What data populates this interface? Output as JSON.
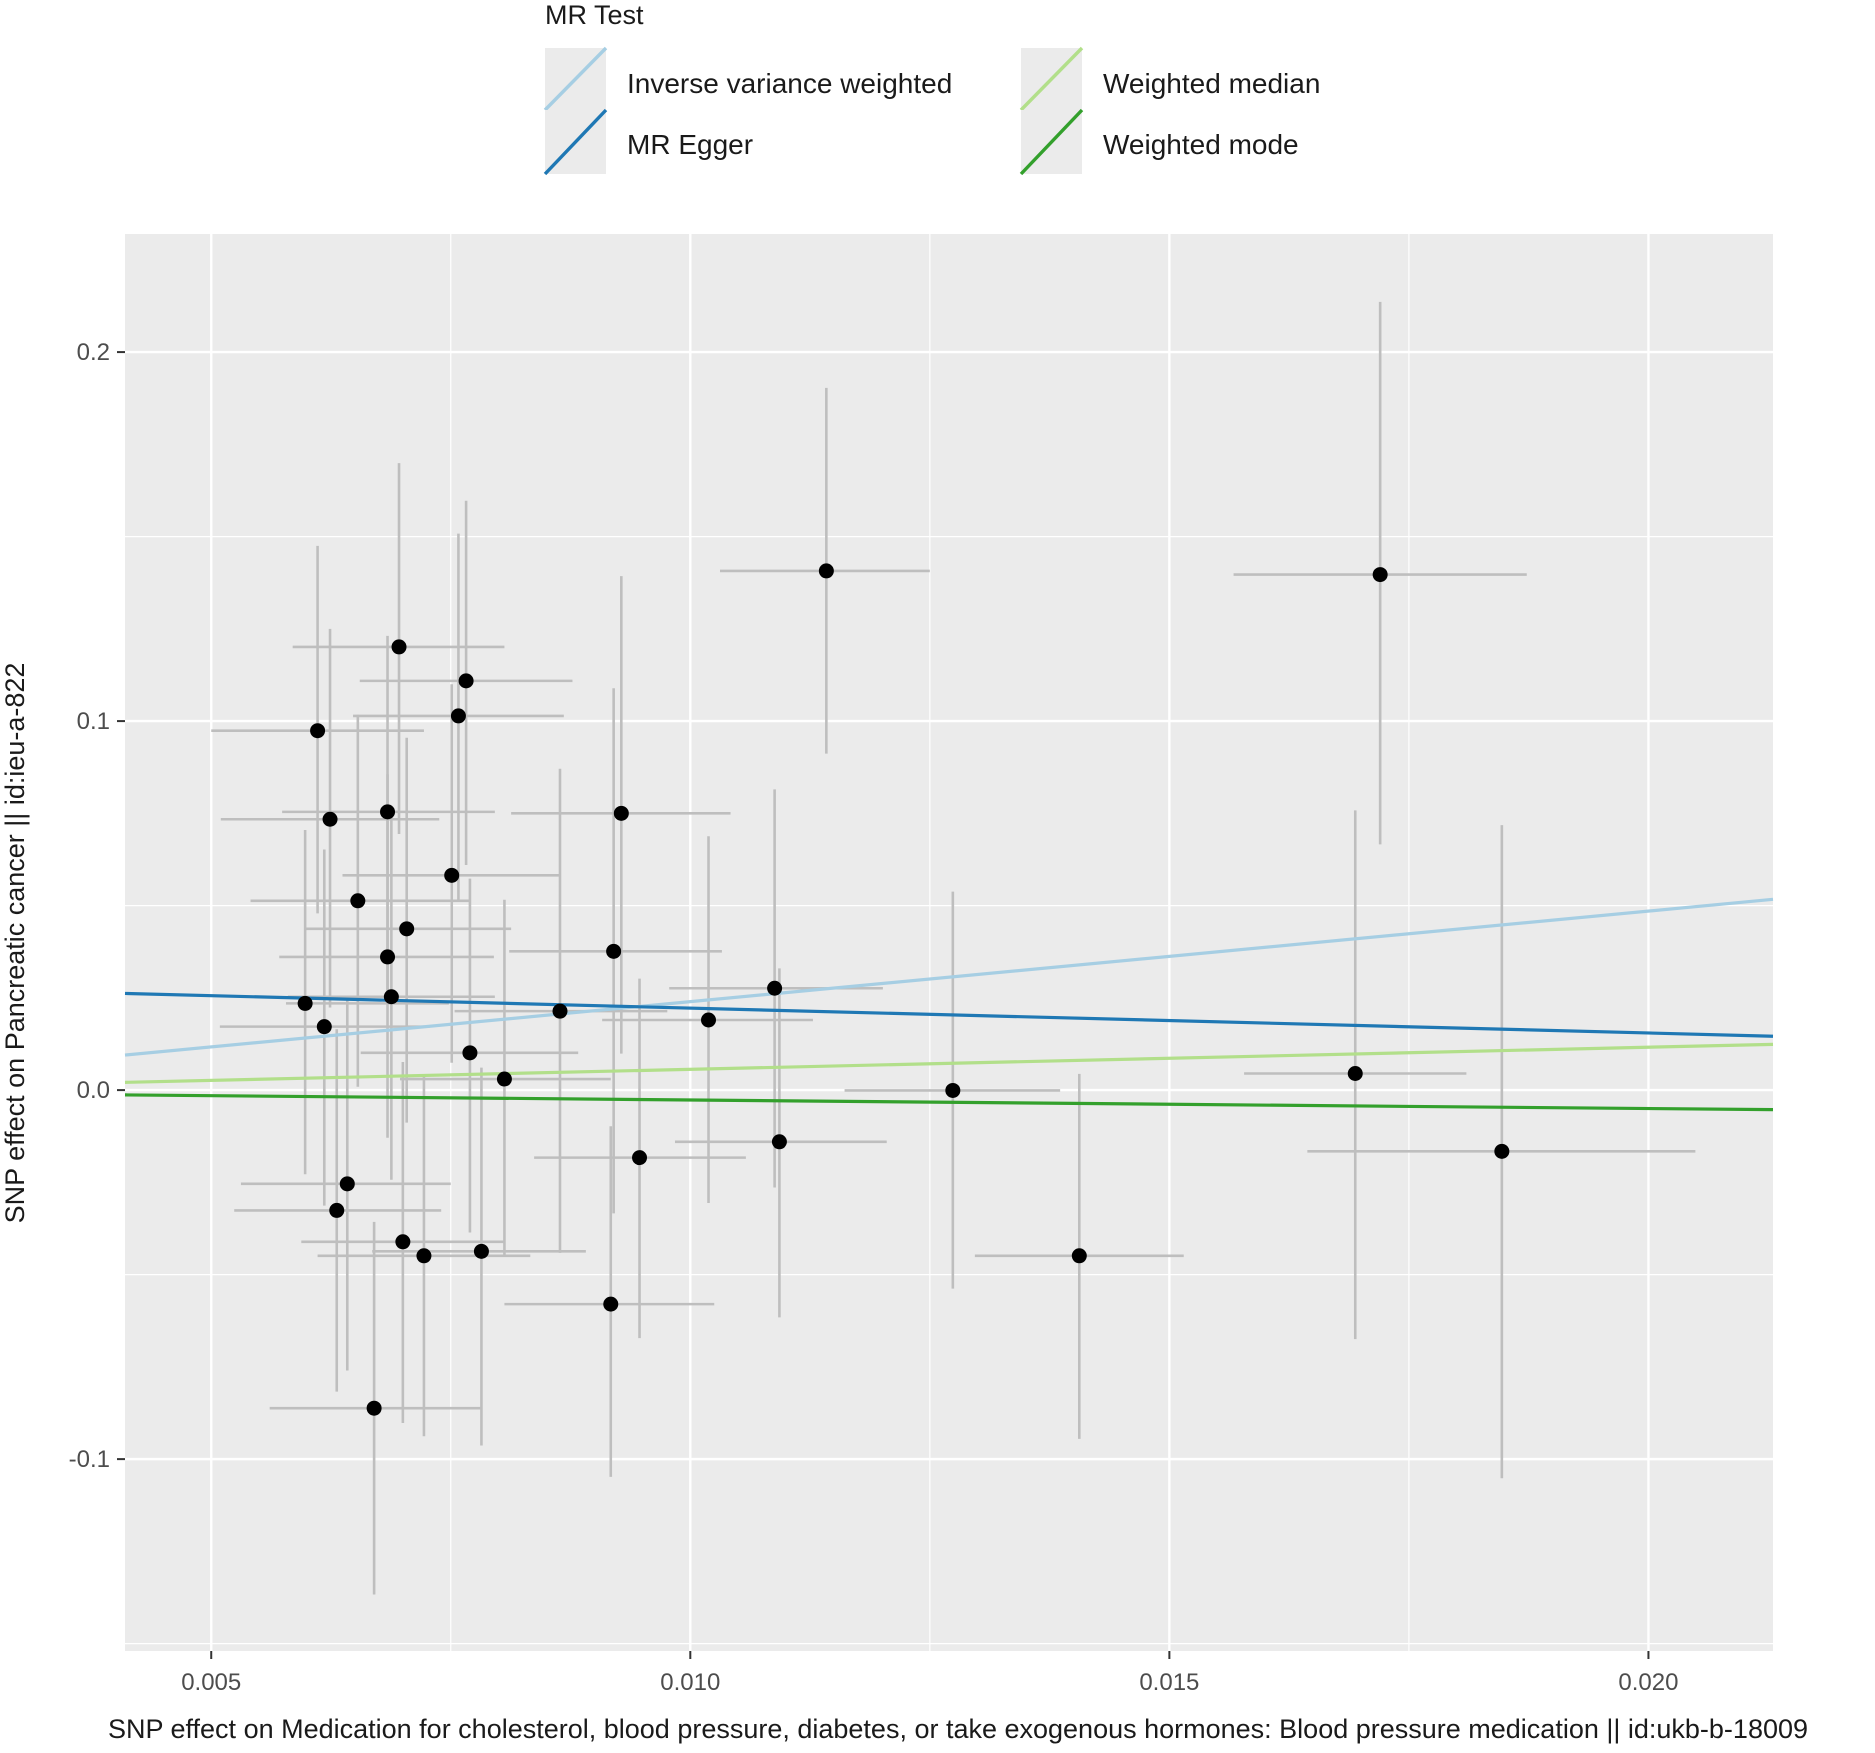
{
  "chart_data": {
    "type": "scatter",
    "xlabel": "SNP effect on Medication for cholesterol, blood pressure, diabetes, or take exogenous hormones: Blood pressure medication || id:ukb-b-18009",
    "ylabel": "SNP effect on Pancreatic cancer || id:ieu-a-822",
    "xlim": [
      0.0041,
      0.0213
    ],
    "ylim": [
      -0.152,
      0.232
    ],
    "x_ticks": [
      "0.005",
      "0.010",
      "0.015",
      "0.020"
    ],
    "x_tick_values": [
      0.005,
      0.01,
      0.015,
      0.02
    ],
    "y_ticks": [
      "0.2",
      "0.1",
      "0.0",
      "-0.1"
    ],
    "y_tick_values": [
      0.2,
      0.1,
      0.0,
      -0.1
    ],
    "grid": true,
    "background": "#ebebeb",
    "legend": {
      "title": "MR Test",
      "placement": "top",
      "entries": [
        {
          "label": "Inverse variance weighted",
          "color": "#a6cee3"
        },
        {
          "label": "MR Egger",
          "color": "#1f78b4"
        },
        {
          "label": "Weighted median",
          "color": "#b2df8a"
        },
        {
          "label": "Weighted mode",
          "color": "#33a02c"
        }
      ]
    },
    "lines": [
      {
        "name": "Inverse variance weighted",
        "color": "#a6cee3",
        "x": [
          0.0041,
          0.0213
        ],
        "y": [
          0.0095,
          0.0517
        ]
      },
      {
        "name": "MR Egger",
        "color": "#1f78b4",
        "x": [
          0.0041,
          0.0213
        ],
        "y": [
          0.0262,
          0.0146
        ]
      },
      {
        "name": "Weighted median",
        "color": "#b2df8a",
        "x": [
          0.0041,
          0.0213
        ],
        "y": [
          0.0021,
          0.0124
        ]
      },
      {
        "name": "Weighted mode",
        "color": "#33a02c",
        "x": [
          0.0041,
          0.0213
        ],
        "y": [
          -0.0013,
          -0.0053
        ]
      }
    ],
    "points": [
      {
        "x": 0.00598,
        "y": 0.0235,
        "xmin": 0.00578,
        "xmax": 0.00748,
        "ymin": -0.0228,
        "ymax": 0.0705
      },
      {
        "x": 0.00611,
        "y": 0.0974,
        "xmin": 0.005,
        "xmax": 0.00722,
        "ymin": 0.0479,
        "ymax": 0.1475
      },
      {
        "x": 0.00618,
        "y": 0.0172,
        "xmin": 0.00509,
        "xmax": 0.00728,
        "ymin": -0.0313,
        "ymax": 0.0652
      },
      {
        "x": 0.00624,
        "y": 0.0734,
        "xmin": 0.0051,
        "xmax": 0.00738,
        "ymin": 0.0224,
        "ymax": 0.125
      },
      {
        "x": 0.00631,
        "y": -0.0326,
        "xmin": 0.00524,
        "xmax": 0.0074,
        "ymin": -0.0817,
        "ymax": 0.0165
      },
      {
        "x": 0.00642,
        "y": -0.0254,
        "xmin": 0.00531,
        "xmax": 0.0075,
        "ymin": -0.076,
        "ymax": 0.0252
      },
      {
        "x": 0.00653,
        "y": 0.0513,
        "xmin": 0.00541,
        "xmax": 0.00769,
        "ymin": 0.0009,
        "ymax": 0.1017
      },
      {
        "x": 0.0067,
        "y": -0.0862,
        "xmin": 0.00561,
        "xmax": 0.00781,
        "ymin": -0.1367,
        "ymax": -0.0357
      },
      {
        "x": 0.00684,
        "y": 0.0754,
        "xmin": 0.00574,
        "xmax": 0.00796,
        "ymin": 0.0269,
        "ymax": 0.1231
      },
      {
        "x": 0.00684,
        "y": 0.0361,
        "xmin": 0.00571,
        "xmax": 0.00795,
        "ymin": -0.0129,
        "ymax": 0.0856
      },
      {
        "x": 0.00688,
        "y": 0.0253,
        "xmin": 0.0058,
        "xmax": 0.00796,
        "ymin": -0.0243,
        "ymax": 0.0763
      },
      {
        "x": 0.00696,
        "y": 0.1201,
        "xmin": 0.00585,
        "xmax": 0.00806,
        "ymin": 0.0694,
        "ymax": 0.1699
      },
      {
        "x": 0.007,
        "y": -0.0411,
        "xmin": 0.00594,
        "xmax": 0.00807,
        "ymin": -0.0902,
        "ymax": 0.0076
      },
      {
        "x": 0.00704,
        "y": 0.0437,
        "xmin": 0.00597,
        "xmax": 0.00813,
        "ymin": -0.0088,
        "ymax": 0.0955
      },
      {
        "x": 0.00722,
        "y": -0.0449,
        "xmin": 0.00611,
        "xmax": 0.00833,
        "ymin": -0.0938,
        "ymax": 0.0039
      },
      {
        "x": 0.00751,
        "y": 0.0582,
        "xmin": 0.00637,
        "xmax": 0.00863,
        "ymin": 0.0074,
        "ymax": 0.11
      },
      {
        "x": 0.00758,
        "y": 0.1014,
        "xmin": 0.00648,
        "xmax": 0.00868,
        "ymin": 0.0516,
        "ymax": 0.1508
      },
      {
        "x": 0.00766,
        "y": 0.1109,
        "xmin": 0.00655,
        "xmax": 0.00877,
        "ymin": 0.061,
        "ymax": 0.1597
      },
      {
        "x": 0.0077,
        "y": 0.0101,
        "xmin": 0.00656,
        "xmax": 0.00883,
        "ymin": -0.0386,
        "ymax": 0.0573
      },
      {
        "x": 0.00782,
        "y": -0.0437,
        "xmin": 0.00668,
        "xmax": 0.00891,
        "ymin": -0.0963,
        "ymax": 0.0061
      },
      {
        "x": 0.00806,
        "y": 0.003,
        "xmin": 0.00697,
        "xmax": 0.00917,
        "ymin": -0.0452,
        "ymax": 0.0516
      },
      {
        "x": 0.00864,
        "y": 0.0214,
        "xmin": 0.00754,
        "xmax": 0.00976,
        "ymin": -0.0441,
        "ymax": 0.0871
      },
      {
        "x": 0.00917,
        "y": -0.058,
        "xmin": 0.00806,
        "xmax": 0.01025,
        "ymin": -0.1048,
        "ymax": -0.0098
      },
      {
        "x": 0.0092,
        "y": 0.0376,
        "xmin": 0.00811,
        "xmax": 0.01033,
        "ymin": -0.0334,
        "ymax": 0.1089
      },
      {
        "x": 0.00928,
        "y": 0.075,
        "xmin": 0.00813,
        "xmax": 0.01042,
        "ymin": 0.0099,
        "ymax": 0.1393
      },
      {
        "x": 0.00947,
        "y": -0.0183,
        "xmin": 0.00837,
        "xmax": 0.01058,
        "ymin": -0.0672,
        "ymax": 0.0302
      },
      {
        "x": 0.01019,
        "y": 0.019,
        "xmin": 0.00908,
        "xmax": 0.01128,
        "ymin": -0.0306,
        "ymax": 0.0688
      },
      {
        "x": 0.01088,
        "y": 0.0276,
        "xmin": 0.00978,
        "xmax": 0.01201,
        "ymin": -0.0264,
        "ymax": 0.0815
      },
      {
        "x": 0.01093,
        "y": -0.014,
        "xmin": 0.00984,
        "xmax": 0.01205,
        "ymin": -0.0616,
        "ymax": 0.033
      },
      {
        "x": 0.01142,
        "y": 0.1407,
        "xmin": 0.01031,
        "xmax": 0.0125,
        "ymin": 0.0912,
        "ymax": 0.1903
      },
      {
        "x": 0.01274,
        "y": -0.0001,
        "xmin": 0.01161,
        "xmax": 0.01386,
        "ymin": -0.0538,
        "ymax": 0.0538
      },
      {
        "x": 0.01406,
        "y": -0.0449,
        "xmin": 0.01297,
        "xmax": 0.01515,
        "ymin": -0.0945,
        "ymax": 0.0044
      },
      {
        "x": 0.01694,
        "y": 0.0045,
        "xmin": 0.01578,
        "xmax": 0.0181,
        "ymin": -0.0675,
        "ymax": 0.0758
      },
      {
        "x": 0.0172,
        "y": 0.1397,
        "xmin": 0.01567,
        "xmax": 0.01873,
        "ymin": 0.0666,
        "ymax": 0.2136
      },
      {
        "x": 0.01847,
        "y": -0.0166,
        "xmin": 0.01644,
        "xmax": 0.02049,
        "ymin": -0.1052,
        "ymax": 0.0718
      }
    ]
  }
}
